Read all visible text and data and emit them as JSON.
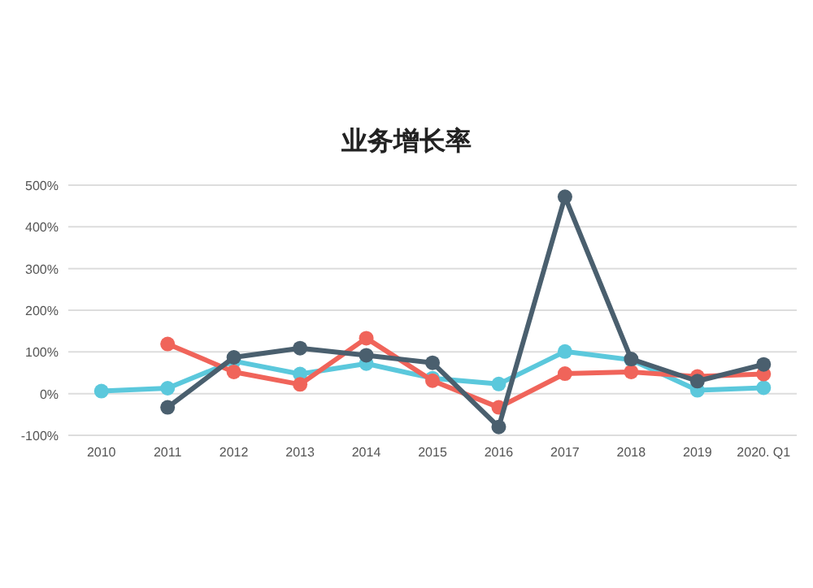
{
  "chart_data": {
    "type": "line",
    "title": "业务增长率",
    "categories": [
      "2010",
      "2011",
      "2012",
      "2013",
      "2014",
      "2015",
      "2016",
      "2017",
      "2018",
      "2019",
      "2020. Q1"
    ],
    "series": [
      {
        "color": "#5bc8dc",
        "values": [
          6,
          13,
          78,
          47,
          72,
          37,
          23,
          101,
          81,
          8,
          14
        ]
      },
      {
        "color": "#f0645a",
        "values": [
          null,
          119,
          52,
          22,
          133,
          31,
          -33,
          48,
          52,
          41,
          47
        ]
      },
      {
        "color": "#4a5f6e",
        "values": [
          null,
          -33,
          87,
          109,
          92,
          74,
          -80,
          472,
          83,
          30,
          70
        ]
      }
    ],
    "ylim": [
      -100,
      500
    ],
    "yticks": [
      {
        "value": -100,
        "label": "-100%"
      },
      {
        "value": 0,
        "label": "0%"
      },
      {
        "value": 100,
        "label": "100%"
      },
      {
        "value": 200,
        "label": "200%"
      },
      {
        "value": 300,
        "label": "300%"
      },
      {
        "value": 400,
        "label": "400%"
      },
      {
        "value": 500,
        "label": "500%"
      }
    ],
    "grid": "y",
    "marker": "circle",
    "line_style": "solid"
  }
}
